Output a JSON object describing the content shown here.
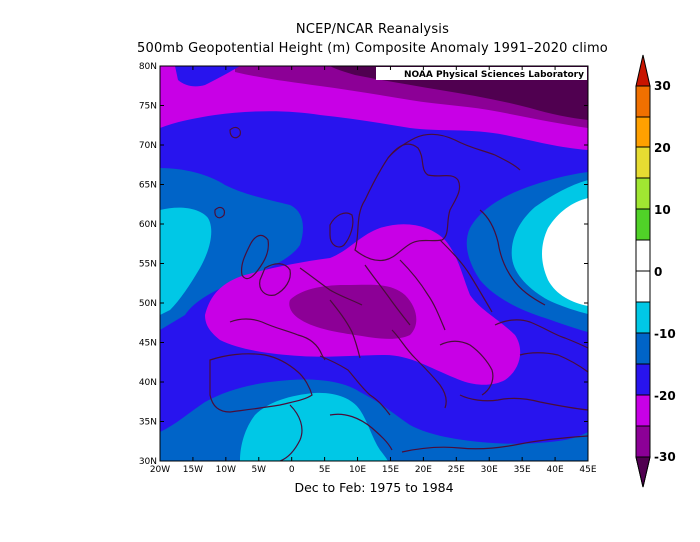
{
  "title_line1": "NCEP/NCAR Reanalysis",
  "title_line2": "500mb Geopotential Height (m) Composite Anomaly 1991–2020 climo",
  "subtitle": "Dec to Feb: 1975 to 1984",
  "credit": "NOAA Physical Sciences Laboratory",
  "lat_labels": [
    "80N",
    "75N",
    "70N",
    "65N",
    "60N",
    "55N",
    "50N",
    "45N",
    "40N",
    "35N",
    "30N"
  ],
  "lon_labels": [
    "20W",
    "15W",
    "10W",
    "5W",
    "0",
    "5E",
    "10E",
    "15E",
    "20E",
    "25E",
    "30E",
    "35E",
    "40E",
    "45E"
  ],
  "colorbar": {
    "labels": [
      "30",
      "20",
      "10",
      "0",
      "-10",
      "-20",
      "-30"
    ],
    "colors": {
      "above_30": "#c81400",
      "20_to_30": "#f07000",
      "20_to_25": "#ffa000",
      "15_to_20": "#e6dc32",
      "10_to_15": "#a0e632",
      "5_to_10": "#50d228",
      "0_to_5": "#ffffff",
      "m5_to_0": "#ffffff",
      "m10_to_m5": "#00c8e6",
      "m15_to_m10": "#0064c8",
      "m20_to_m15": "#2814ee",
      "m25_to_m20": "#c800e6",
      "m30_to_m25": "#8c0096",
      "below_m30": "#500050"
    }
  },
  "map": {
    "region": "Europe",
    "lat_range": [
      30,
      80
    ],
    "lon_range": [
      -20,
      45
    ],
    "field": "500mb Geopotential Height Anomaly (m)",
    "fill_colors": {
      "darkest": "#500050",
      "dark_purple": "#8c0096",
      "magenta": "#c800e6",
      "blue": "#2814ee",
      "mid_blue": "#0064c8",
      "cyan": "#00c8e6",
      "white": "#ffffff",
      "coastline": "#4a0d3a"
    }
  }
}
